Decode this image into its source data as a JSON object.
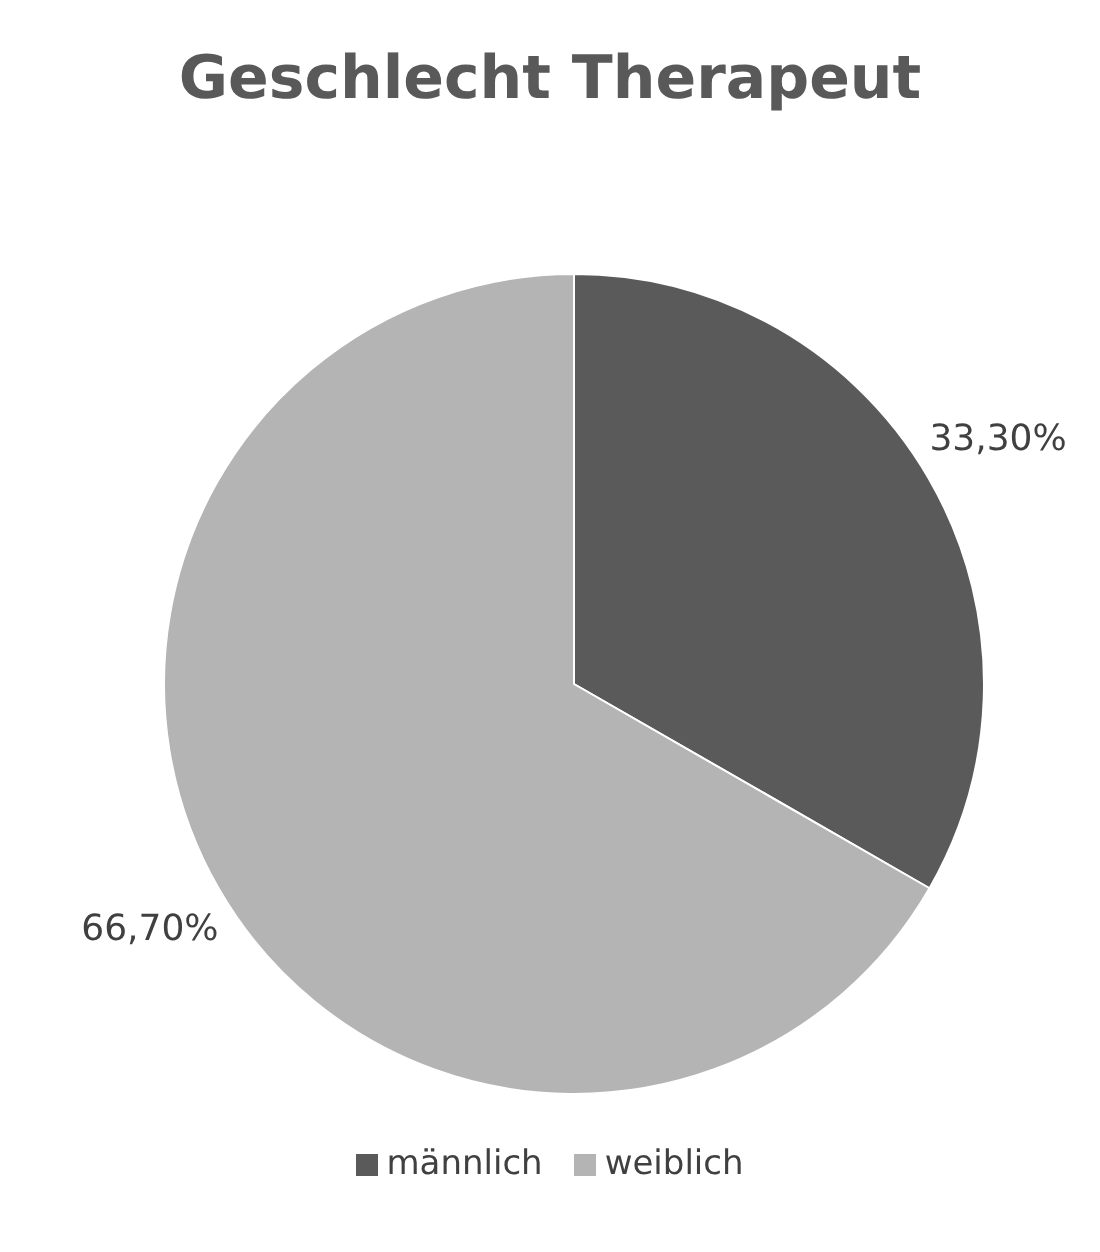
{
  "chart_data": {
    "type": "pie",
    "title": "Geschlecht Therapeut",
    "categories": [
      "männlich",
      "weiblich"
    ],
    "values": [
      33.3,
      66.7
    ],
    "colors": [
      "#5a5a5a",
      "#b4b4b4"
    ],
    "value_labels": [
      "33,30%",
      "66,70%"
    ],
    "legend": "bottom"
  }
}
